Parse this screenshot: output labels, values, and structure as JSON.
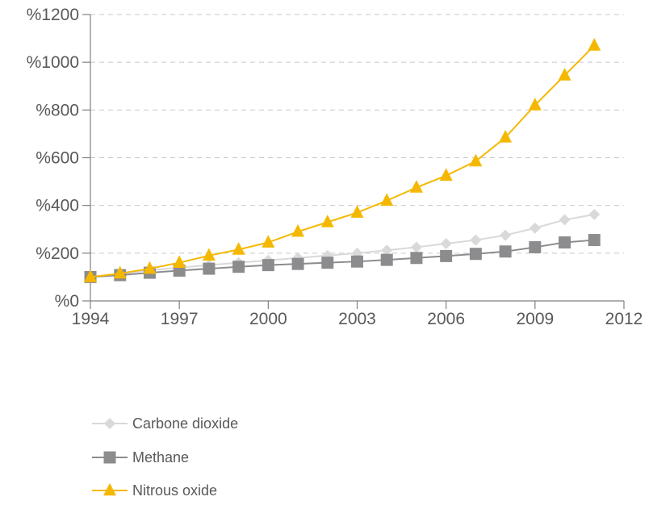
{
  "chart_data": {
    "type": "line",
    "title": "",
    "xlabel": "",
    "ylabel": "",
    "xlim": [
      1994,
      2012
    ],
    "ylim": [
      0,
      1200
    ],
    "x_ticks": [
      1994,
      1997,
      2000,
      2003,
      2006,
      2009,
      2012
    ],
    "x_tick_labels": [
      "1994",
      "1997",
      "2000",
      "2003",
      "2006",
      "2009",
      "2012"
    ],
    "y_ticks": [
      0,
      200,
      400,
      600,
      800,
      1000,
      1200
    ],
    "y_tick_labels": [
      "%0",
      "%200",
      "%400",
      "%600",
      "%800",
      "%1000",
      "%1200"
    ],
    "grid": "horizontal dashed",
    "legend_position": "bottom-left",
    "x": [
      1994,
      1995,
      1996,
      1997,
      1998,
      1999,
      2000,
      2001,
      2002,
      2003,
      2004,
      2005,
      2006,
      2007,
      2008,
      2009,
      2010,
      2011
    ],
    "series": [
      {
        "name": "Carbone dioxide",
        "color": "#d9d9d9",
        "marker": "diamond",
        "values": [
          100,
          114,
          128,
          140,
          150,
          160,
          170,
          180,
          190,
          200,
          212,
          225,
          240,
          255,
          275,
          305,
          340,
          362
        ]
      },
      {
        "name": "Methane",
        "color": "#8c8c8e",
        "marker": "square",
        "values": [
          100,
          108,
          118,
          127,
          135,
          143,
          150,
          155,
          160,
          165,
          172,
          180,
          188,
          197,
          207,
          225,
          245,
          255
        ]
      },
      {
        "name": "Nitrous oxide",
        "color": "#f5b800",
        "marker": "triangle",
        "values": [
          100,
          115,
          135,
          160,
          190,
          215,
          245,
          290,
          330,
          370,
          420,
          475,
          525,
          585,
          685,
          820,
          945,
          1070
        ]
      }
    ]
  }
}
